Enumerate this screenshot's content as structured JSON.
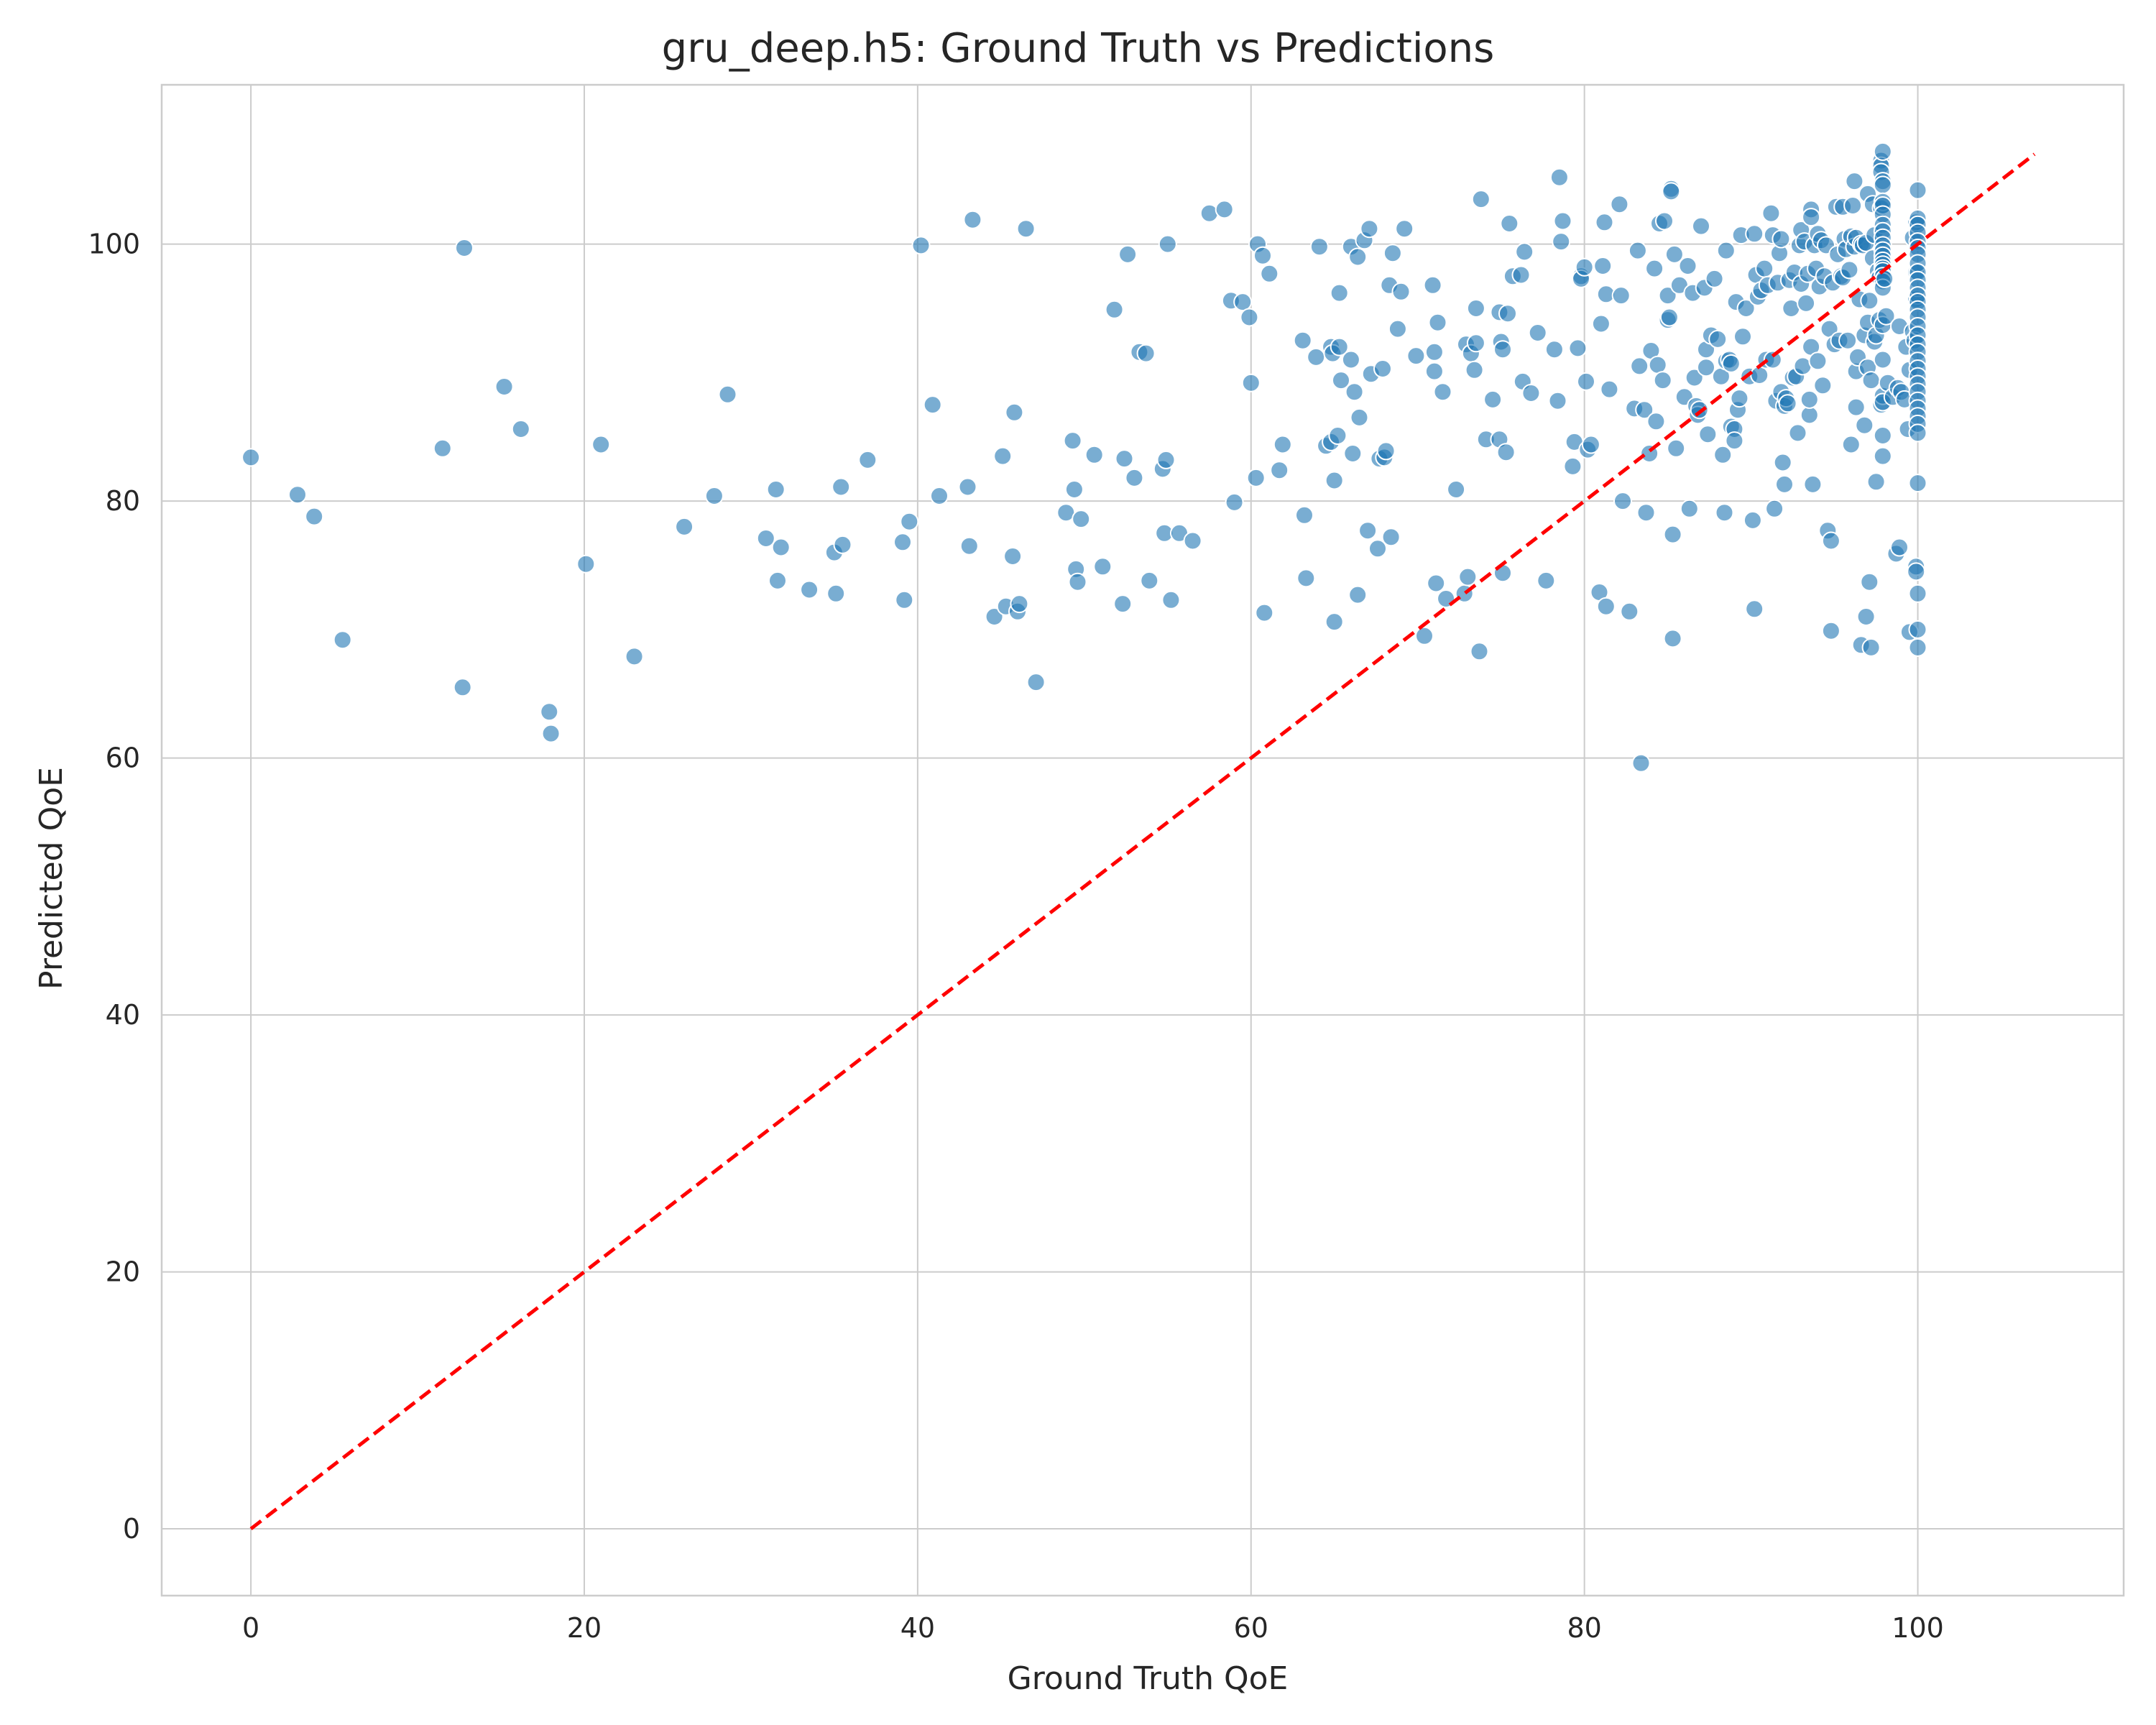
{
  "chart_data": {
    "type": "scatter",
    "title": "gru_deep.h5: Ground Truth vs Predictions",
    "xlabel": "Ground Truth QoE",
    "ylabel": "Predicted QoE",
    "xlim": [
      -5.35,
      112.35
    ],
    "ylim": [
      -5.2,
      112.4
    ],
    "xticks": [
      0,
      20,
      40,
      60,
      80,
      100
    ],
    "yticks": [
      0,
      20,
      40,
      60,
      80,
      100
    ],
    "grid": true,
    "colors": {
      "points": "#1f77b4",
      "reference_line": "#ff0000",
      "grid": "#cccccc"
    },
    "reference_line": {
      "style": "dashed",
      "x": [
        0,
        107
      ],
      "y": [
        0,
        107
      ]
    },
    "points": [
      [
        0.0,
        83.4
      ],
      [
        2.8,
        80.5
      ],
      [
        3.8,
        78.8
      ],
      [
        5.5,
        69.2
      ],
      [
        11.5,
        84.1
      ],
      [
        12.7,
        65.5
      ],
      [
        12.8,
        99.7
      ],
      [
        15.2,
        88.9
      ],
      [
        16.2,
        85.6
      ],
      [
        17.9,
        63.6
      ],
      [
        18.0,
        61.9
      ],
      [
        20.1,
        75.1
      ],
      [
        21.0,
        84.4
      ],
      [
        23.0,
        67.9
      ],
      [
        26.0,
        78.0
      ],
      [
        27.8,
        80.4
      ],
      [
        28.6,
        88.3
      ],
      [
        30.9,
        77.1
      ],
      [
        31.5,
        80.9
      ],
      [
        31.6,
        73.8
      ],
      [
        31.8,
        76.4
      ],
      [
        33.5,
        73.1
      ],
      [
        35.0,
        76.0
      ],
      [
        35.1,
        72.8
      ],
      [
        35.4,
        81.1
      ],
      [
        35.5,
        76.6
      ],
      [
        37.0,
        83.2
      ],
      [
        39.1,
        76.8
      ],
      [
        39.2,
        72.3
      ],
      [
        39.5,
        78.4
      ],
      [
        40.2,
        99.9
      ],
      [
        40.9,
        87.5
      ],
      [
        41.3,
        80.4
      ],
      [
        43.0,
        81.1
      ],
      [
        43.1,
        76.5
      ],
      [
        43.3,
        101.9
      ],
      [
        44.6,
        71.0
      ],
      [
        45.1,
        83.5
      ],
      [
        45.3,
        71.8
      ],
      [
        45.7,
        75.7
      ],
      [
        45.8,
        86.9
      ],
      [
        46.0,
        71.4
      ],
      [
        46.1,
        72.0
      ],
      [
        46.5,
        101.2
      ],
      [
        47.1,
        65.9
      ],
      [
        48.9,
        79.1
      ],
      [
        49.3,
        84.7
      ],
      [
        49.4,
        80.9
      ],
      [
        49.5,
        74.7
      ],
      [
        49.6,
        73.7
      ],
      [
        49.8,
        78.6
      ],
      [
        50.6,
        83.6
      ],
      [
        51.1,
        74.9
      ],
      [
        51.8,
        94.9
      ],
      [
        52.3,
        72.0
      ],
      [
        52.4,
        83.3
      ],
      [
        52.6,
        99.2
      ],
      [
        53.0,
        81.8
      ],
      [
        53.3,
        91.6
      ],
      [
        53.7,
        91.5
      ],
      [
        53.9,
        73.8
      ],
      [
        54.7,
        82.5
      ],
      [
        54.8,
        77.5
      ],
      [
        54.9,
        83.2
      ],
      [
        55.0,
        100.0
      ],
      [
        55.2,
        72.3
      ],
      [
        55.7,
        77.5
      ],
      [
        56.5,
        76.9
      ],
      [
        57.5,
        102.4
      ],
      [
        58.4,
        102.7
      ],
      [
        58.8,
        95.6
      ],
      [
        59.0,
        79.9
      ],
      [
        59.5,
        95.5
      ],
      [
        59.9,
        94.3
      ],
      [
        60.0,
        89.2
      ],
      [
        60.3,
        81.8
      ],
      [
        60.4,
        100.0
      ],
      [
        60.7,
        99.1
      ],
      [
        60.8,
        71.3
      ],
      [
        61.1,
        97.7
      ],
      [
        61.7,
        82.4
      ],
      [
        61.9,
        84.4
      ],
      [
        63.1,
        92.5
      ],
      [
        63.2,
        78.9
      ],
      [
        63.3,
        74.0
      ],
      [
        63.9,
        91.2
      ],
      [
        64.1,
        99.8
      ],
      [
        64.5,
        84.3
      ],
      [
        64.8,
        92.0
      ],
      [
        64.8,
        84.6
      ],
      [
        64.9,
        91.5
      ],
      [
        65.0,
        70.6
      ],
      [
        65.0,
        81.6
      ],
      [
        65.2,
        85.1
      ],
      [
        65.3,
        92.0
      ],
      [
        65.3,
        96.2
      ],
      [
        65.4,
        89.4
      ],
      [
        66.0,
        91.0
      ],
      [
        66.0,
        99.8
      ],
      [
        66.1,
        83.7
      ],
      [
        66.2,
        88.5
      ],
      [
        66.4,
        99.0
      ],
      [
        66.4,
        72.7
      ],
      [
        66.5,
        86.5
      ],
      [
        66.8,
        100.3
      ],
      [
        67.0,
        77.7
      ],
      [
        67.1,
        101.2
      ],
      [
        67.2,
        89.9
      ],
      [
        67.6,
        76.3
      ],
      [
        67.7,
        83.3
      ],
      [
        67.9,
        90.3
      ],
      [
        68.0,
        83.4
      ],
      [
        68.1,
        83.9
      ],
      [
        68.3,
        96.8
      ],
      [
        68.4,
        77.2
      ],
      [
        68.5,
        99.3
      ],
      [
        68.8,
        93.4
      ],
      [
        69.0,
        96.3
      ],
      [
        69.2,
        101.2
      ],
      [
        69.9,
        91.3
      ],
      [
        70.4,
        69.5
      ],
      [
        70.9,
        96.8
      ],
      [
        71.0,
        90.1
      ],
      [
        71.0,
        91.6
      ],
      [
        71.1,
        73.6
      ],
      [
        71.2,
        93.9
      ],
      [
        71.5,
        88.5
      ],
      [
        71.7,
        72.4
      ],
      [
        72.3,
        80.9
      ],
      [
        72.8,
        72.8
      ],
      [
        72.9,
        92.2
      ],
      [
        73.0,
        74.1
      ],
      [
        73.2,
        91.5
      ],
      [
        73.4,
        90.2
      ],
      [
        73.5,
        92.3
      ],
      [
        73.5,
        95.0
      ],
      [
        73.7,
        68.3
      ],
      [
        73.8,
        103.5
      ],
      [
        74.1,
        84.8
      ],
      [
        74.5,
        87.9
      ],
      [
        74.9,
        84.8
      ],
      [
        74.9,
        94.7
      ],
      [
        75.0,
        92.4
      ],
      [
        75.1,
        91.8
      ],
      [
        75.1,
        74.4
      ],
      [
        75.3,
        83.8
      ],
      [
        75.4,
        94.6
      ],
      [
        75.5,
        101.6
      ],
      [
        75.7,
        97.5
      ],
      [
        76.2,
        97.6
      ],
      [
        76.3,
        89.3
      ],
      [
        76.4,
        99.4
      ],
      [
        76.8,
        88.4
      ],
      [
        77.2,
        93.1
      ],
      [
        77.7,
        73.8
      ],
      [
        78.2,
        91.8
      ],
      [
        78.4,
        87.8
      ],
      [
        78.5,
        105.2
      ],
      [
        78.6,
        100.2
      ],
      [
        78.7,
        101.8
      ],
      [
        79.3,
        82.7
      ],
      [
        79.4,
        84.6
      ],
      [
        79.6,
        91.9
      ],
      [
        79.8,
        97.5
      ],
      [
        79.8,
        97.3
      ],
      [
        80.0,
        98.2
      ],
      [
        80.1,
        89.3
      ],
      [
        80.2,
        84.0
      ],
      [
        80.4,
        84.4
      ],
      [
        80.9,
        72.9
      ],
      [
        81.0,
        93.8
      ],
      [
        81.1,
        98.3
      ],
      [
        81.2,
        101.7
      ],
      [
        81.3,
        71.8
      ],
      [
        81.3,
        96.1
      ],
      [
        81.5,
        88.7
      ],
      [
        82.1,
        103.1
      ],
      [
        82.2,
        96.0
      ],
      [
        82.3,
        80.0
      ],
      [
        82.7,
        71.4
      ],
      [
        83.0,
        87.2
      ],
      [
        83.2,
        99.5
      ],
      [
        83.3,
        90.5
      ],
      [
        83.4,
        59.6
      ],
      [
        83.6,
        87.1
      ],
      [
        83.7,
        79.1
      ],
      [
        83.9,
        83.7
      ],
      [
        84.0,
        91.7
      ],
      [
        84.2,
        98.1
      ],
      [
        84.3,
        86.2
      ],
      [
        84.4,
        90.6
      ],
      [
        84.5,
        101.6
      ],
      [
        84.7,
        89.4
      ],
      [
        84.8,
        101.8
      ],
      [
        85.0,
        94.1
      ],
      [
        85.0,
        96.0
      ],
      [
        85.1,
        94.3
      ],
      [
        85.2,
        104.3
      ],
      [
        85.2,
        104.1
      ],
      [
        85.3,
        69.3
      ],
      [
        85.3,
        77.4
      ],
      [
        85.4,
        99.2
      ],
      [
        85.5,
        84.1
      ],
      [
        85.7,
        96.8
      ],
      [
        86.0,
        88.1
      ],
      [
        86.2,
        98.3
      ],
      [
        86.3,
        79.4
      ],
      [
        86.5,
        96.2
      ],
      [
        86.6,
        89.6
      ],
      [
        86.7,
        87.4
      ],
      [
        86.8,
        86.7
      ],
      [
        86.9,
        87.1
      ],
      [
        87.0,
        101.4
      ],
      [
        87.2,
        96.6
      ],
      [
        87.3,
        91.8
      ],
      [
        87.3,
        90.4
      ],
      [
        87.4,
        85.2
      ],
      [
        87.6,
        92.9
      ],
      [
        87.8,
        97.3
      ],
      [
        88.0,
        92.6
      ],
      [
        88.2,
        89.7
      ],
      [
        88.3,
        83.6
      ],
      [
        88.4,
        79.1
      ],
      [
        88.5,
        90.9
      ],
      [
        88.5,
        99.5
      ],
      [
        88.7,
        91.0
      ],
      [
        88.8,
        90.7
      ],
      [
        88.8,
        85.8
      ],
      [
        89.0,
        85.6
      ],
      [
        89.0,
        84.7
      ],
      [
        89.1,
        95.5
      ],
      [
        89.2,
        87.1
      ],
      [
        89.3,
        88.0
      ],
      [
        89.4,
        100.7
      ],
      [
        89.5,
        92.8
      ],
      [
        89.7,
        95.0
      ],
      [
        89.9,
        89.7
      ],
      [
        90.1,
        78.5
      ],
      [
        90.2,
        71.6
      ],
      [
        90.2,
        100.8
      ],
      [
        90.3,
        97.6
      ],
      [
        90.4,
        95.9
      ],
      [
        90.5,
        89.8
      ],
      [
        90.6,
        96.4
      ],
      [
        90.8,
        98.1
      ],
      [
        90.9,
        91.0
      ],
      [
        91.0,
        96.8
      ],
      [
        91.2,
        102.4
      ],
      [
        91.3,
        100.7
      ],
      [
        91.3,
        91.0
      ],
      [
        91.4,
        79.4
      ],
      [
        91.5,
        87.8
      ],
      [
        91.6,
        97.0
      ],
      [
        91.7,
        99.3
      ],
      [
        91.8,
        100.4
      ],
      [
        91.8,
        88.5
      ],
      [
        91.9,
        83.0
      ],
      [
        92.0,
        81.3
      ],
      [
        92.0,
        87.4
      ],
      [
        92.1,
        88.0
      ],
      [
        92.2,
        87.6
      ],
      [
        92.3,
        97.2
      ],
      [
        92.4,
        95.0
      ],
      [
        92.5,
        89.6
      ],
      [
        92.6,
        97.8
      ],
      [
        92.7,
        89.7
      ],
      [
        92.8,
        85.3
      ],
      [
        92.9,
        99.9
      ],
      [
        93.0,
        96.9
      ],
      [
        93.0,
        101.1
      ],
      [
        93.1,
        90.5
      ],
      [
        93.2,
        100.2
      ],
      [
        93.3,
        95.4
      ],
      [
        93.4,
        97.7
      ],
      [
        93.5,
        86.7
      ],
      [
        93.5,
        87.9
      ],
      [
        93.6,
        102.7
      ],
      [
        93.6,
        102.1
      ],
      [
        93.6,
        92.0
      ],
      [
        93.7,
        81.3
      ],
      [
        93.8,
        99.9
      ],
      [
        93.9,
        98.1
      ],
      [
        94.0,
        90.9
      ],
      [
        94.0,
        100.8
      ],
      [
        94.1,
        96.7
      ],
      [
        94.2,
        100.3
      ],
      [
        94.3,
        89.0
      ],
      [
        94.4,
        97.5
      ],
      [
        94.5,
        99.9
      ],
      [
        94.6,
        77.7
      ],
      [
        94.7,
        93.4
      ],
      [
        94.8,
        69.9
      ],
      [
        94.8,
        76.9
      ],
      [
        94.9,
        97.0
      ],
      [
        95.0,
        92.2
      ],
      [
        95.1,
        102.9
      ],
      [
        95.2,
        99.2
      ],
      [
        95.3,
        92.5
      ],
      [
        95.4,
        97.5
      ],
      [
        95.5,
        97.4
      ],
      [
        95.5,
        102.9
      ],
      [
        95.6,
        100.4
      ],
      [
        95.7,
        99.6
      ],
      [
        95.8,
        92.5
      ],
      [
        95.9,
        98.0
      ],
      [
        96.0,
        84.4
      ],
      [
        96.0,
        100.6
      ],
      [
        96.1,
        103.0
      ],
      [
        96.2,
        99.8
      ],
      [
        96.2,
        104.9
      ],
      [
        96.3,
        100.5
      ],
      [
        96.3,
        90.1
      ],
      [
        96.3,
        87.3
      ],
      [
        96.4,
        91.2
      ],
      [
        96.5,
        95.7
      ],
      [
        96.6,
        68.8
      ],
      [
        96.6,
        100.0
      ],
      [
        96.7,
        99.9
      ],
      [
        96.8,
        92.9
      ],
      [
        96.8,
        85.9
      ],
      [
        96.9,
        100.1
      ],
      [
        96.9,
        71.0
      ],
      [
        97.0,
        90.4
      ],
      [
        97.0,
        93.9
      ],
      [
        97.0,
        103.9
      ],
      [
        97.1,
        95.6
      ],
      [
        97.1,
        73.7
      ],
      [
        97.2,
        68.6
      ],
      [
        97.2,
        89.4
      ],
      [
        97.3,
        98.9
      ],
      [
        97.3,
        103.1
      ],
      [
        97.4,
        100.7
      ],
      [
        97.4,
        92.4
      ],
      [
        97.5,
        92.9
      ],
      [
        97.5,
        81.5
      ],
      [
        97.6,
        97.9
      ],
      [
        97.7,
        97.4
      ],
      [
        97.7,
        94.1
      ],
      [
        97.8,
        87.5
      ],
      [
        97.8,
        106.5
      ],
      [
        97.8,
        102.8
      ],
      [
        97.8,
        106.1
      ],
      [
        97.8,
        105.6
      ],
      [
        97.9,
        104.9
      ],
      [
        97.9,
        104.6
      ],
      [
        97.9,
        103.3
      ],
      [
        97.9,
        103.0
      ],
      [
        97.9,
        102.3
      ],
      [
        97.9,
        101.5
      ],
      [
        97.9,
        101.0
      ],
      [
        97.9,
        100.5
      ],
      [
        97.9,
        99.9
      ],
      [
        97.9,
        99.5
      ],
      [
        97.9,
        99.1
      ],
      [
        97.9,
        98.7
      ],
      [
        97.9,
        98.4
      ],
      [
        97.9,
        98.1
      ],
      [
        97.9,
        97.9
      ],
      [
        97.9,
        97.5
      ],
      [
        97.9,
        97.1
      ],
      [
        97.9,
        96.6
      ],
      [
        97.9,
        93.7
      ],
      [
        97.9,
        91.0
      ],
      [
        97.9,
        88.2
      ],
      [
        97.9,
        87.7
      ],
      [
        97.9,
        85.1
      ],
      [
        97.9,
        83.5
      ],
      [
        97.9,
        107.2
      ],
      [
        98.0,
        97.3
      ],
      [
        98.1,
        94.4
      ],
      [
        98.2,
        89.2
      ],
      [
        98.5,
        88.1
      ],
      [
        98.7,
        75.9
      ],
      [
        98.8,
        88.8
      ],
      [
        98.9,
        93.6
      ],
      [
        98.9,
        76.4
      ],
      [
        99.0,
        88.5
      ],
      [
        99.2,
        87.9
      ],
      [
        99.3,
        92.0
      ],
      [
        99.4,
        85.6
      ],
      [
        99.5,
        69.8
      ],
      [
        99.5,
        90.2
      ],
      [
        99.7,
        93.2
      ],
      [
        99.7,
        100.5
      ],
      [
        99.8,
        92.5
      ],
      [
        99.9,
        101.7
      ],
      [
        99.9,
        97.8
      ],
      [
        99.9,
        95.7
      ],
      [
        99.9,
        74.9
      ],
      [
        99.9,
        74.5
      ],
      [
        100.0,
        104.2
      ],
      [
        100.0,
        102.0
      ],
      [
        100.0,
        101.5
      ],
      [
        100.0,
        100.9
      ],
      [
        100.0,
        100.2
      ],
      [
        100.0,
        99.7
      ],
      [
        100.0,
        99.2
      ],
      [
        100.0,
        98.5
      ],
      [
        100.0,
        97.8
      ],
      [
        100.0,
        97.2
      ],
      [
        100.0,
        96.6
      ],
      [
        100.0,
        96.0
      ],
      [
        100.0,
        95.5
      ],
      [
        100.0,
        94.9
      ],
      [
        100.0,
        94.3
      ],
      [
        100.0,
        93.6
      ],
      [
        100.0,
        92.9
      ],
      [
        100.0,
        92.2
      ],
      [
        100.0,
        91.6
      ],
      [
        100.0,
        90.9
      ],
      [
        100.0,
        90.3
      ],
      [
        100.0,
        89.7
      ],
      [
        100.0,
        89.1
      ],
      [
        100.0,
        88.5
      ],
      [
        100.0,
        87.8
      ],
      [
        100.0,
        87.2
      ],
      [
        100.0,
        86.6
      ],
      [
        100.0,
        86.0
      ],
      [
        100.0,
        85.3
      ],
      [
        100.0,
        81.4
      ],
      [
        100.0,
        72.8
      ],
      [
        100.0,
        70.0
      ],
      [
        100.0,
        68.6
      ]
    ]
  }
}
